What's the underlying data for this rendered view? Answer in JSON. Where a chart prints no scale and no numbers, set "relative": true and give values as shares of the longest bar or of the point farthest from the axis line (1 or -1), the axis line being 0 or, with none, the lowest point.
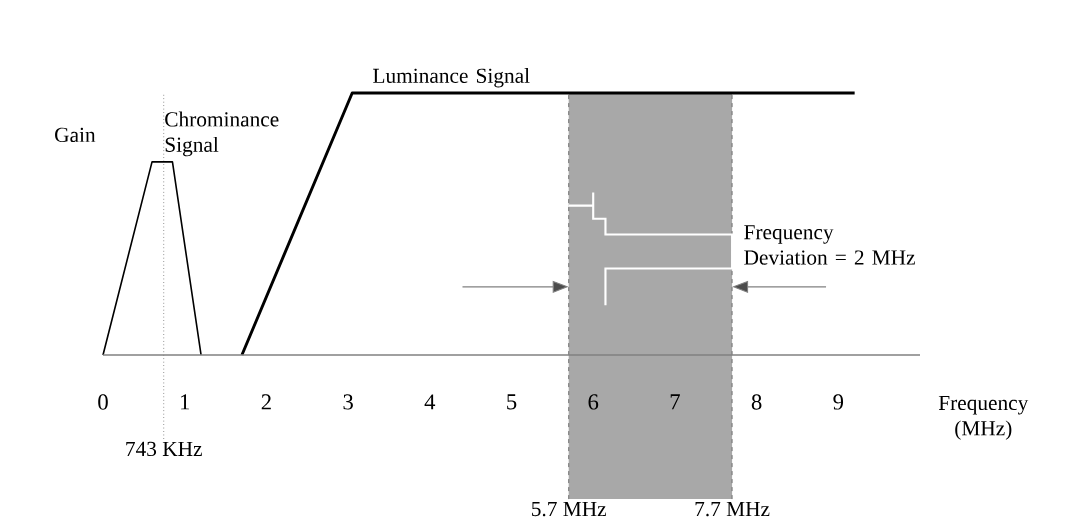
{
  "chart_data": {
    "type": "line",
    "relative": true,
    "ylabel": "Gain",
    "xlabel": "Frequency (MHz)",
    "xlim": [
      0,
      10
    ],
    "xticks": [
      0,
      1,
      2,
      3,
      4,
      5,
      6,
      7,
      8,
      9
    ],
    "tick_labels": "x",
    "grid": false,
    "marker": "none",
    "series": [
      {
        "name": "Chrominance Signal",
        "color": "#000000",
        "x": [
          0,
          0.6,
          0.85,
          1.2
        ],
        "values": [
          0,
          0.737,
          0.737,
          0
        ]
      },
      {
        "name": "Luminance Signal",
        "color": "#000000",
        "x": [
          1.7,
          3.05,
          9.2
        ],
        "values": [
          0,
          1,
          1
        ]
      }
    ],
    "bands": [
      {
        "axis": "x",
        "from": 5.7,
        "to": 7.7,
        "color": "#a8a8a8"
      }
    ],
    "ref_lines": [
      {
        "axis": "x",
        "value": 0.743,
        "label": "743 KHz",
        "line_style": "dotted"
      },
      {
        "axis": "x",
        "value": 5.7,
        "label": "5.7 MHz",
        "line_style": "dashed"
      },
      {
        "axis": "x",
        "value": 7.7,
        "label": "7.7 MHz",
        "line_style": "dashed"
      }
    ],
    "annotations": [
      "Frequency Deviation = 2 MHz"
    ]
  }
}
